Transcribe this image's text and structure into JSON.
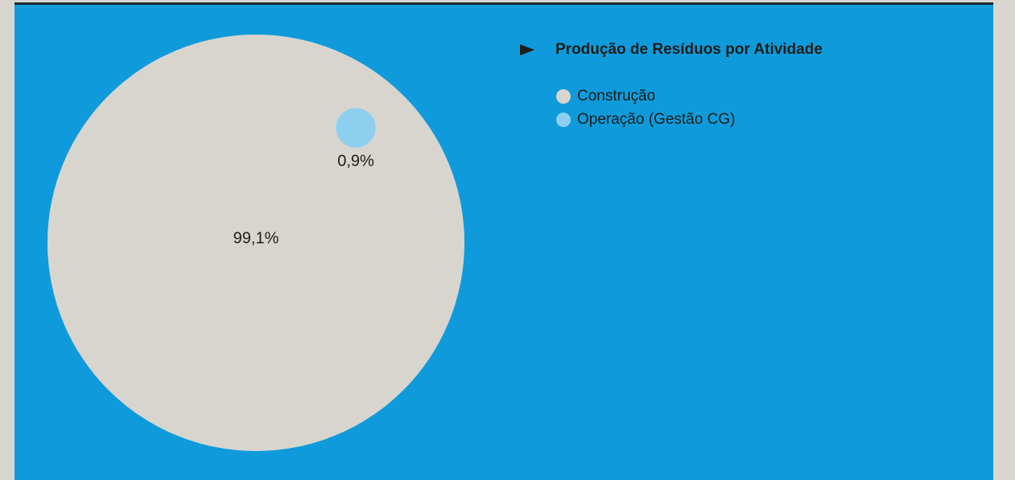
{
  "chart_data": {
    "type": "bubble",
    "title": "Produção de Resíduos por Atividade",
    "categories": [
      "Construção",
      "Operação (Gestão CG)"
    ],
    "values": [
      99.1,
      0.9
    ],
    "value_labels": [
      "99,1%",
      "0,9%"
    ],
    "colors": [
      "#d8d5cf",
      "#8ecff0"
    ]
  }
}
